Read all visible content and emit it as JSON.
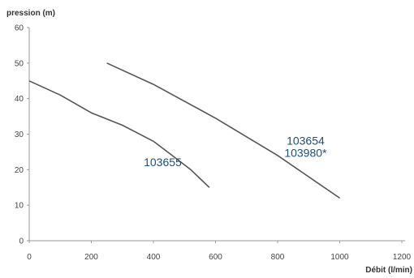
{
  "chart_data": {
    "type": "line",
    "ylabel": "pression (m)",
    "xlabel": "Débit (l/min)",
    "xlim": [
      0,
      1200
    ],
    "ylim": [
      0,
      60
    ],
    "x_ticks": [
      0,
      200,
      400,
      600,
      800,
      1000,
      1200
    ],
    "y_ticks": [
      0,
      10,
      20,
      30,
      40,
      50,
      60
    ],
    "grid": false,
    "series_color": "#555555",
    "series": [
      {
        "name": "103655",
        "label_lines": [
          "103655"
        ],
        "points": [
          [
            0,
            45
          ],
          [
            100,
            41
          ],
          [
            200,
            36
          ],
          [
            300,
            32.5
          ],
          [
            400,
            28
          ],
          [
            460,
            24
          ],
          [
            520,
            20
          ],
          [
            580,
            15
          ]
        ]
      },
      {
        "name": "103654 103980*",
        "label_lines": [
          "103654",
          "103980*"
        ],
        "points": [
          [
            250,
            50
          ],
          [
            400,
            44
          ],
          [
            600,
            34.5
          ],
          [
            800,
            24
          ],
          [
            1000,
            12
          ]
        ]
      }
    ]
  }
}
